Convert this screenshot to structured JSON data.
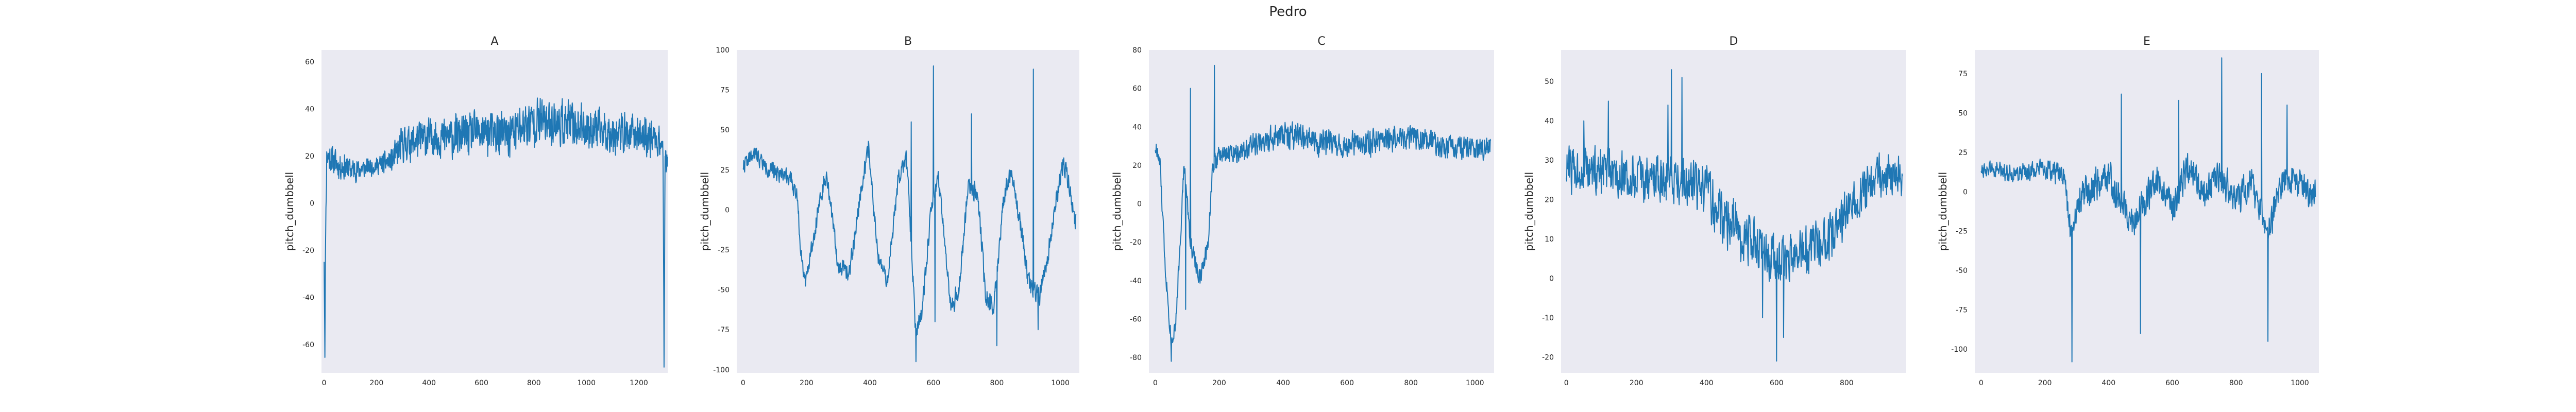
{
  "figure": {
    "title": "Pedro"
  },
  "style": {
    "plot_bg": "#eaeaf2",
    "line_color": "#1f77b4",
    "text_color": "#262626"
  },
  "chart_data": [
    {
      "type": "line",
      "title": "A",
      "ylabel": "pitch_dumbbell",
      "xlim": [
        -10,
        1310
      ],
      "ylim": [
        -72,
        65
      ],
      "xticks": [
        0,
        200,
        400,
        600,
        800,
        1000,
        1200
      ],
      "yticks": [
        -60,
        -40,
        -20,
        0,
        20,
        40,
        60
      ],
      "n": 1310,
      "anchors": [
        [
          0,
          -22
        ],
        [
          3,
          -60
        ],
        [
          6,
          -10
        ],
        [
          10,
          20
        ],
        [
          60,
          16
        ],
        [
          120,
          14
        ],
        [
          200,
          16
        ],
        [
          260,
          18
        ],
        [
          300,
          25
        ],
        [
          400,
          28
        ],
        [
          500,
          28
        ],
        [
          600,
          30
        ],
        [
          700,
          29
        ],
        [
          800,
          35
        ],
        [
          900,
          34
        ],
        [
          1000,
          32
        ],
        [
          1100,
          30
        ],
        [
          1200,
          29
        ],
        [
          1260,
          28
        ],
        [
          1292,
          25
        ],
        [
          1296,
          -68
        ],
        [
          1300,
          15
        ],
        [
          1309,
          20
        ]
      ],
      "noise": [
        [
          0,
          8
        ],
        [
          200,
          4
        ],
        [
          300,
          9
        ],
        [
          800,
          12
        ],
        [
          1100,
          10
        ],
        [
          1309,
          9
        ]
      ],
      "seed": 11
    },
    {
      "type": "line",
      "title": "B",
      "ylabel": "pitch_dumbbell",
      "xlim": [
        -20,
        1060
      ],
      "ylim": [
        -102,
        100
      ],
      "xticks": [
        0,
        200,
        400,
        600,
        800,
        1000
      ],
      "yticks": [
        -100,
        -75,
        -50,
        -25,
        0,
        25,
        50,
        75,
        100
      ],
      "n": 1050,
      "anchors": [
        [
          0,
          28
        ],
        [
          40,
          35
        ],
        [
          80,
          25
        ],
        [
          140,
          22
        ],
        [
          170,
          10
        ],
        [
          180,
          -20
        ],
        [
          195,
          -45
        ],
        [
          215,
          -25
        ],
        [
          245,
          10
        ],
        [
          265,
          20
        ],
        [
          300,
          -35
        ],
        [
          335,
          -40
        ],
        [
          370,
          10
        ],
        [
          395,
          40
        ],
        [
          425,
          -30
        ],
        [
          455,
          -45
        ],
        [
          490,
          20
        ],
        [
          515,
          35
        ],
        [
          545,
          -80
        ],
        [
          565,
          -60
        ],
        [
          595,
          5
        ],
        [
          615,
          20
        ],
        [
          655,
          -62
        ],
        [
          680,
          -50
        ],
        [
          710,
          15
        ],
        [
          740,
          10
        ],
        [
          765,
          -55
        ],
        [
          790,
          -60
        ],
        [
          820,
          5
        ],
        [
          845,
          25
        ],
        [
          875,
          -10
        ],
        [
          900,
          -45
        ],
        [
          935,
          -55
        ],
        [
          960,
          -30
        ],
        [
          990,
          10
        ],
        [
          1010,
          30
        ],
        [
          1030,
          15
        ],
        [
          1045,
          -8
        ]
      ],
      "noise": [
        [
          0,
          6
        ],
        [
          1049,
          8
        ]
      ],
      "spikes": [
        [
          545,
          -95
        ],
        [
          600,
          90
        ],
        [
          605,
          -70
        ],
        [
          720,
          60
        ],
        [
          800,
          -85
        ],
        [
          915,
          88
        ],
        [
          930,
          -75
        ],
        [
          530,
          55
        ]
      ],
      "seed": 22
    },
    {
      "type": "line",
      "title": "C",
      "ylabel": "pitch_dumbbell",
      "xlim": [
        -20,
        1060
      ],
      "ylim": [
        -88,
        80
      ],
      "xticks": [
        0,
        200,
        400,
        600,
        800,
        1000
      ],
      "yticks": [
        -80,
        -60,
        -40,
        -20,
        0,
        20,
        40,
        60,
        80
      ],
      "n": 1050,
      "anchors": [
        [
          0,
          30
        ],
        [
          15,
          20
        ],
        [
          30,
          -30
        ],
        [
          50,
          -72
        ],
        [
          65,
          -60
        ],
        [
          90,
          20
        ],
        [
          110,
          -20
        ],
        [
          140,
          -40
        ],
        [
          165,
          -20
        ],
        [
          180,
          20
        ],
        [
          200,
          25
        ],
        [
          300,
          30
        ],
        [
          400,
          35
        ],
        [
          500,
          33
        ],
        [
          600,
          30
        ],
        [
          700,
          33
        ],
        [
          800,
          35
        ],
        [
          900,
          30
        ],
        [
          1000,
          28
        ],
        [
          1049,
          30
        ]
      ],
      "noise": [
        [
          0,
          6
        ],
        [
          200,
          6
        ],
        [
          400,
          9
        ],
        [
          1049,
          7
        ]
      ],
      "spikes": [
        [
          50,
          -82
        ],
        [
          110,
          60
        ],
        [
          185,
          72
        ],
        [
          95,
          -55
        ]
      ],
      "seed": 33
    },
    {
      "type": "line",
      "title": "D",
      "ylabel": "pitch_dumbbell",
      "xlim": [
        -15,
        970
      ],
      "ylim": [
        -24,
        58
      ],
      "xticks": [
        0,
        200,
        400,
        600,
        800
      ],
      "yticks": [
        -20,
        -10,
        0,
        10,
        20,
        30,
        40,
        50
      ],
      "n": 960,
      "anchors": [
        [
          0,
          28
        ],
        [
          100,
          27
        ],
        [
          200,
          25
        ],
        [
          300,
          26
        ],
        [
          400,
          22
        ],
        [
          450,
          15
        ],
        [
          550,
          8
        ],
        [
          600,
          4
        ],
        [
          650,
          5
        ],
        [
          750,
          10
        ],
        [
          800,
          17
        ],
        [
          850,
          22
        ],
        [
          900,
          27
        ],
        [
          959,
          25
        ]
      ],
      "noise": [
        [
          0,
          7
        ],
        [
          500,
          8
        ],
        [
          959,
          6
        ]
      ],
      "spikes": [
        [
          300,
          53
        ],
        [
          330,
          51
        ],
        [
          290,
          44
        ],
        [
          560,
          -10
        ],
        [
          600,
          -21
        ],
        [
          620,
          -15
        ],
        [
          50,
          40
        ],
        [
          120,
          45
        ]
      ],
      "seed": 44
    },
    {
      "type": "line",
      "title": "E",
      "ylabel": "pitch_dumbbell",
      "xlim": [
        -20,
        1060
      ],
      "ylim": [
        -115,
        90
      ],
      "xticks": [
        0,
        200,
        400,
        600,
        800,
        1000
      ],
      "yticks": [
        -100,
        -75,
        -50,
        -25,
        0,
        25,
        50,
        75
      ],
      "n": 1050,
      "anchors": [
        [
          0,
          15
        ],
        [
          100,
          12
        ],
        [
          200,
          14
        ],
        [
          260,
          10
        ],
        [
          280,
          -25
        ],
        [
          320,
          0
        ],
        [
          400,
          10
        ],
        [
          480,
          -20
        ],
        [
          550,
          8
        ],
        [
          600,
          -10
        ],
        [
          650,
          15
        ],
        [
          700,
          0
        ],
        [
          750,
          10
        ],
        [
          800,
          -5
        ],
        [
          850,
          5
        ],
        [
          900,
          -25
        ],
        [
          950,
          10
        ],
        [
          1000,
          5
        ],
        [
          1049,
          -2
        ]
      ],
      "noise": [
        [
          0,
          6
        ],
        [
          260,
          8
        ],
        [
          300,
          13
        ],
        [
          1049,
          12
        ]
      ],
      "spikes": [
        [
          285,
          -108
        ],
        [
          440,
          62
        ],
        [
          500,
          -90
        ],
        [
          755,
          85
        ],
        [
          900,
          -95
        ],
        [
          960,
          55
        ],
        [
          880,
          75
        ],
        [
          620,
          58
        ]
      ],
      "seed": 55
    }
  ]
}
